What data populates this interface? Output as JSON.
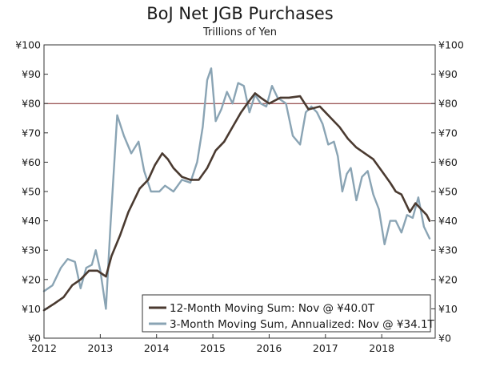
{
  "chart_data": {
    "type": "line",
    "title": "BoJ Net JGB Purchases",
    "subtitle": "Trillions of Yen",
    "xlabel": "",
    "ylabel": "",
    "xlim": [
      2012,
      2018.95
    ],
    "ylim": [
      0,
      100
    ],
    "x_ticks": [
      {
        "value": 2012,
        "label": "2012"
      },
      {
        "value": 2013,
        "label": "2013"
      },
      {
        "value": 2014,
        "label": "2014"
      },
      {
        "value": 2015,
        "label": "2015"
      },
      {
        "value": 2016,
        "label": "2016"
      },
      {
        "value": 2017,
        "label": "2017"
      },
      {
        "value": 2018,
        "label": "2018"
      }
    ],
    "y_ticks": [
      {
        "value": 0,
        "label": "¥0"
      },
      {
        "value": 10,
        "label": "¥10"
      },
      {
        "value": 20,
        "label": "¥20"
      },
      {
        "value": 30,
        "label": "¥30"
      },
      {
        "value": 40,
        "label": "¥40"
      },
      {
        "value": 50,
        "label": "¥50"
      },
      {
        "value": 60,
        "label": "¥60"
      },
      {
        "value": 70,
        "label": "¥70"
      },
      {
        "value": 80,
        "label": "¥80"
      },
      {
        "value": 90,
        "label": "¥90"
      },
      {
        "value": 100,
        "label": "¥100"
      }
    ],
    "reference_line": {
      "y": 80,
      "color": "#7a2020"
    },
    "legend_position": "bottom-right",
    "series": [
      {
        "name": "12-Month Moving Sum: Nov @ ¥40.0T",
        "color": "#4a3a30",
        "x": [
          2012.0,
          2012.2,
          2012.35,
          2012.5,
          2012.65,
          2012.8,
          2012.95,
          2013.1,
          2013.2,
          2013.35,
          2013.5,
          2013.7,
          2013.85,
          2013.97,
          2014.1,
          2014.2,
          2014.3,
          2014.45,
          2014.6,
          2014.75,
          2014.9,
          2015.05,
          2015.2,
          2015.35,
          2015.5,
          2015.65,
          2015.75,
          2015.85,
          2016.0,
          2016.2,
          2016.35,
          2016.55,
          2016.7,
          2016.8,
          2016.9,
          2017.0,
          2017.1,
          2017.25,
          2017.4,
          2017.55,
          2017.7,
          2017.85,
          2018.0,
          2018.15,
          2018.25,
          2018.35,
          2018.5,
          2018.6,
          2018.7,
          2018.8,
          2018.85
        ],
        "values": [
          9.5,
          12,
          14,
          18,
          20,
          23,
          23,
          21,
          28,
          35,
          43,
          51,
          54,
          59,
          63,
          61,
          58,
          55,
          54,
          54,
          58,
          64,
          67,
          72,
          77,
          81,
          83.5,
          82,
          80,
          82,
          82,
          82.5,
          78,
          78.5,
          79,
          77,
          75,
          72,
          68,
          65,
          63,
          61,
          57,
          53,
          50,
          49,
          43,
          46,
          44,
          42,
          40
        ]
      },
      {
        "name": "3-Month Moving Sum, Annualized: Nov @ ¥34.1T",
        "color": "#8aa4b4",
        "x": [
          2012.0,
          2012.15,
          2012.3,
          2012.42,
          2012.55,
          2012.65,
          2012.75,
          2012.85,
          2012.92,
          2013.0,
          2013.1,
          2013.18,
          2013.3,
          2013.42,
          2013.55,
          2013.68,
          2013.78,
          2013.9,
          2014.05,
          2014.15,
          2014.3,
          2014.45,
          2014.6,
          2014.72,
          2014.82,
          2014.9,
          2014.97,
          2015.05,
          2015.15,
          2015.25,
          2015.35,
          2015.45,
          2015.55,
          2015.65,
          2015.75,
          2015.85,
          2015.95,
          2016.05,
          2016.15,
          2016.3,
          2016.42,
          2016.55,
          2016.65,
          2016.75,
          2016.85,
          2016.95,
          2017.05,
          2017.15,
          2017.22,
          2017.3,
          2017.38,
          2017.45,
          2017.55,
          2017.65,
          2017.75,
          2017.85,
          2017.95,
          2018.05,
          2018.15,
          2018.25,
          2018.35,
          2018.45,
          2018.55,
          2018.65,
          2018.75,
          2018.85
        ],
        "values": [
          16,
          18,
          24,
          27,
          26,
          17,
          24,
          25,
          30,
          23,
          10,
          38,
          76,
          69,
          63,
          67,
          57,
          50,
          50,
          52,
          50,
          54,
          53,
          60,
          72,
          88,
          92,
          74,
          78,
          84,
          80,
          87,
          86,
          77,
          83,
          80,
          79,
          86,
          82,
          80,
          69,
          66,
          77,
          79,
          77,
          73,
          66,
          67,
          62,
          50,
          56,
          58,
          47,
          55,
          57,
          49,
          44,
          32,
          40,
          40,
          36,
          42,
          41,
          48,
          38,
          34
        ]
      }
    ]
  }
}
